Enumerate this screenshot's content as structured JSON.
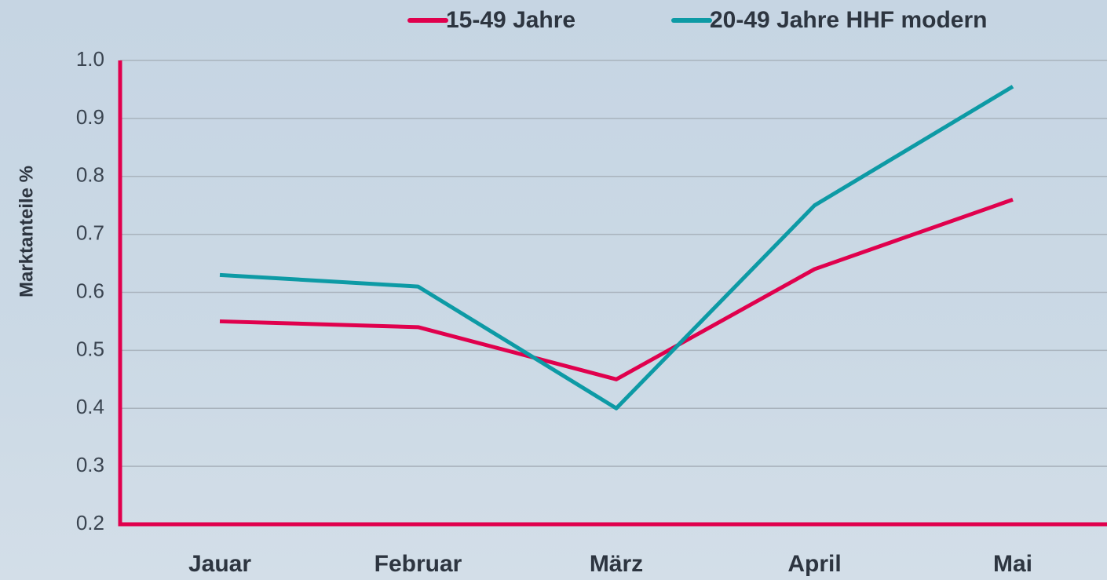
{
  "chart_data": {
    "type": "line",
    "y_label": "Marktanteile %",
    "categories": [
      "Jauar",
      "Februar",
      "März",
      "April",
      "Mai"
    ],
    "series": [
      {
        "name": "15-49 Jahre",
        "color": "#e0004d",
        "values": [
          0.55,
          0.54,
          0.45,
          0.64,
          0.76
        ]
      },
      {
        "name": "20-49 Jahre HHF modern",
        "color": "#0d9aa5",
        "values": [
          0.63,
          0.61,
          0.4,
          0.75,
          0.955
        ]
      }
    ],
    "ylim": [
      0.2,
      1
    ],
    "yticks": [
      0.2,
      0.3,
      0.4,
      0.5,
      0.6,
      0.7,
      0.8,
      0.9,
      {
        "value": 1,
        "label": "1.0"
      }
    ],
    "grid": true,
    "axis_color": "#e0004d"
  }
}
